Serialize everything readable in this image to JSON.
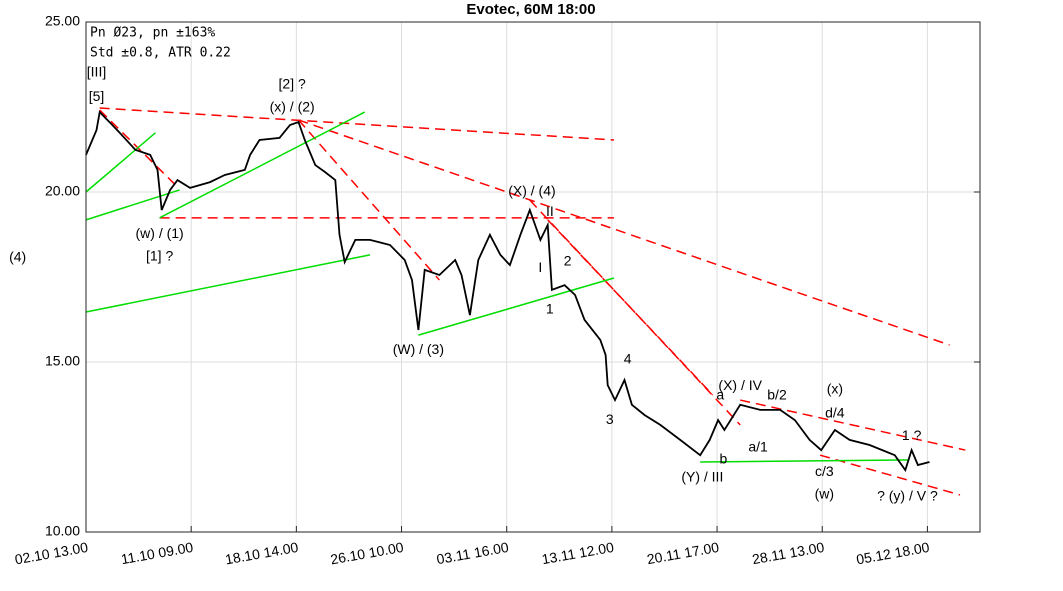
{
  "chart_data": {
    "type": "line",
    "title": "Evotec, 60M 18:00",
    "info_lines": [
      "Pn  Ø23, pn ±163%",
      "Std ±0.8, ATR 0.22"
    ],
    "xlim": [
      0,
      8.5
    ],
    "ylim": [
      10,
      25
    ],
    "grid": true,
    "xticks": [
      {
        "value": 0,
        "label": "02.10 13.00"
      },
      {
        "value": 1,
        "label": "11.10 09.00"
      },
      {
        "value": 2,
        "label": "18.10 14.00"
      },
      {
        "value": 3,
        "label": "26.10 10.00"
      },
      {
        "value": 4,
        "label": "03.11 16.00"
      },
      {
        "value": 5,
        "label": "13.11 12.00"
      },
      {
        "value": 6,
        "label": "20.11 17.00"
      },
      {
        "value": 7,
        "label": "28.11 13.00"
      },
      {
        "value": 8,
        "label": "05.12 18.00"
      }
    ],
    "yticks": [
      {
        "value": 10,
        "label": "10.00"
      },
      {
        "value": 15,
        "label": "15.00"
      },
      {
        "value": 20,
        "label": "20.00"
      },
      {
        "value": 25,
        "label": "25.00"
      }
    ],
    "series": [
      {
        "color": "#000000",
        "x": [
          0,
          0.1,
          0.13,
          0.25,
          0.32,
          0.47,
          0.61,
          0.68,
          0.72,
          0.8,
          0.87,
          0.99,
          1.18,
          1.32,
          1.51,
          1.56,
          1.65,
          1.84,
          1.94,
          2.02,
          2.08,
          2.18,
          2.27,
          2.37,
          2.41,
          2.46,
          2.56,
          2.7,
          2.89,
          3.03,
          3.1,
          3.16,
          3.22,
          3.36,
          3.51,
          3.57,
          3.65,
          3.73,
          3.84,
          3.94,
          4.03,
          4.13,
          4.22,
          4.32,
          4.39,
          4.43,
          4.55,
          4.65,
          4.74,
          4.89,
          4.94,
          4.96,
          5.03,
          5.12,
          5.19,
          5.31,
          5.46,
          5.65,
          5.84,
          5.93,
          6.01,
          6.07,
          6.22,
          6.41,
          6.6,
          6.74,
          6.88,
          6.99,
          7.12,
          7.26,
          7.45,
          7.69,
          7.79,
          7.85,
          7.91,
          8.02
        ],
        "values": [
          21.09,
          21.82,
          22.35,
          21.97,
          21.74,
          21.24,
          21.09,
          20.65,
          19.47,
          20.06,
          20.35,
          20.12,
          20.29,
          20.5,
          20.65,
          21.09,
          21.53,
          21.59,
          21.97,
          22.06,
          21.53,
          20.79,
          20.59,
          20.35,
          18.74,
          17.94,
          18.59,
          18.59,
          18.44,
          18.0,
          17.41,
          15.94,
          17.71,
          17.56,
          18.0,
          17.56,
          16.38,
          18.0,
          18.74,
          18.15,
          17.85,
          18.74,
          19.47,
          18.59,
          19.03,
          17.12,
          17.26,
          16.97,
          16.24,
          15.65,
          15.21,
          14.32,
          13.88,
          14.47,
          13.74,
          13.44,
          13.15,
          12.71,
          12.26,
          12.71,
          13.29,
          13.0,
          13.74,
          13.59,
          13.59,
          13.29,
          12.71,
          12.41,
          13.0,
          12.71,
          12.56,
          12.26,
          11.82,
          12.41,
          11.97,
          12.06
        ]
      }
    ],
    "trendlines": [
      {
        "color": "#ff0000",
        "dashed": true,
        "x": [
          0.13,
          5.02
        ],
        "y": [
          22.47,
          21.53
        ]
      },
      {
        "color": "#ff0000",
        "dashed": true,
        "x": [
          2.02,
          8.21
        ],
        "y": [
          22.12,
          15.5
        ]
      },
      {
        "color": "#ff0000",
        "dashed": true,
        "x": [
          2.02,
          3.36
        ],
        "y": [
          22.12,
          17.41
        ]
      },
      {
        "color": "#ff0000",
        "dashed": true,
        "x": [
          0.7,
          5.02
        ],
        "y": [
          19.24,
          19.24
        ]
      },
      {
        "color": "#ff0000",
        "dashed": true,
        "x": [
          0.13,
          0.85
        ],
        "y": [
          22.41,
          20.21
        ]
      },
      {
        "color": "#ff0000",
        "dashed": true,
        "x": [
          4.22,
          6.22
        ],
        "y": [
          19.76,
          13.15
        ]
      },
      {
        "color": "#ff0000",
        "dashed": true,
        "x": [
          4.39,
          5.96
        ],
        "y": [
          19.18,
          14.03
        ]
      },
      {
        "color": "#ff0000",
        "dashed": true,
        "x": [
          6.22,
          8.36
        ],
        "y": [
          13.88,
          12.41
        ]
      },
      {
        "color": "#ff0000",
        "dashed": true,
        "x": [
          6.98,
          8.31
        ],
        "y": [
          12.26,
          11.09
        ]
      },
      {
        "color": "#00dd00",
        "dashed": false,
        "x": [
          0,
          0.66
        ],
        "y": [
          20,
          21.74
        ]
      },
      {
        "color": "#00dd00",
        "dashed": false,
        "x": [
          0,
          0.89
        ],
        "y": [
          19.18,
          20.06
        ]
      },
      {
        "color": "#00dd00",
        "dashed": false,
        "x": [
          0.7,
          2.65
        ],
        "y": [
          19.24,
          22.35
        ]
      },
      {
        "color": "#00dd00",
        "dashed": false,
        "x": [
          0,
          2.7
        ],
        "y": [
          16.47,
          18.15
        ]
      },
      {
        "color": "#00dd00",
        "dashed": false,
        "x": [
          3.16,
          5.02
        ],
        "y": [
          15.79,
          17.47
        ]
      },
      {
        "color": "#00dd00",
        "dashed": false,
        "x": [
          5.84,
          7.83
        ],
        "y": [
          12.06,
          12.12
        ]
      }
    ],
    "annotations": [
      {
        "text": "[III]",
        "x": 0.1,
        "y": 23.5
      },
      {
        "text": "[5]",
        "x": 0.1,
        "y": 22.79
      },
      {
        "text": "[2] ?",
        "x": 1.96,
        "y": 23.15
      },
      {
        "text": "(x) / (2)",
        "x": 1.96,
        "y": 22.47
      },
      {
        "text": "(w) / (1)",
        "x": 0.7,
        "y": 18.76
      },
      {
        "text": "[1] ?",
        "x": 0.7,
        "y": 18.09
      },
      {
        "text": "(4)",
        "x": -0.65,
        "y": 18.06
      },
      {
        "text": "(W) / (3)",
        "x": 3.16,
        "y": 15.35
      },
      {
        "text": "(X) / (4)",
        "x": 4.24,
        "y": 20
      },
      {
        "text": "II",
        "x": 4.41,
        "y": 19.41
      },
      {
        "text": "I",
        "x": 4.32,
        "y": 17.76
      },
      {
        "text": "2",
        "x": 4.58,
        "y": 17.94
      },
      {
        "text": "1",
        "x": 4.41,
        "y": 16.53
      },
      {
        "text": "4",
        "x": 5.15,
        "y": 15.06
      },
      {
        "text": "3",
        "x": 4.98,
        "y": 13.29
      },
      {
        "text": "(X) / IV",
        "x": 6.22,
        "y": 14.29
      },
      {
        "text": "a",
        "x": 6.03,
        "y": 14.0
      },
      {
        "text": "b/2",
        "x": 6.57,
        "y": 14.0
      },
      {
        "text": "(x)",
        "x": 7.12,
        "y": 14.18
      },
      {
        "text": "d/4",
        "x": 7.12,
        "y": 13.47
      },
      {
        "text": "a/1",
        "x": 6.39,
        "y": 12.47
      },
      {
        "text": "b",
        "x": 6.06,
        "y": 12.12
      },
      {
        "text": "c/3",
        "x": 7.02,
        "y": 11.76
      },
      {
        "text": "(Y) / III",
        "x": 5.86,
        "y": 11.59
      },
      {
        "text": "(w)",
        "x": 7.02,
        "y": 11.09
      },
      {
        "text": "1 ?",
        "x": 7.85,
        "y": 12.82
      },
      {
        "text": "? (y) / V ?",
        "x": 7.81,
        "y": 11.03
      }
    ]
  }
}
